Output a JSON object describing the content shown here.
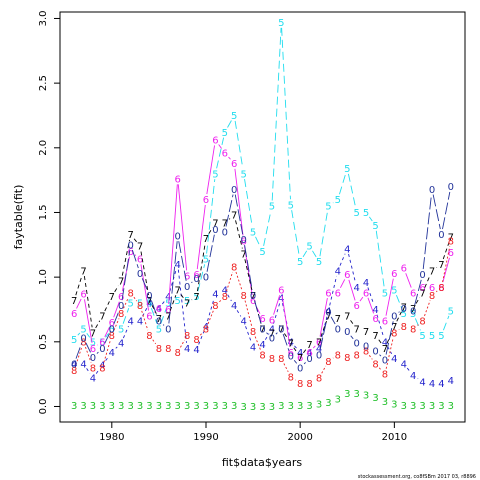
{
  "chart_data": {
    "type": "line",
    "title": "",
    "xlabel": "fit$data$years",
    "ylabel": "faytable(fit)",
    "xlim": [
      1974.5,
      2017.5
    ],
    "ylim": [
      -0.12,
      3.05
    ],
    "xticks": [
      1980,
      1990,
      2000,
      2010
    ],
    "yticks": [
      0.0,
      0.5,
      1.0,
      1.5,
      2.0,
      2.5,
      3.0
    ],
    "ytick_labels": [
      "0.0",
      "0.5",
      "1.0",
      "1.5",
      "2.0",
      "2.5",
      "3.0"
    ],
    "grid": false,
    "x": [
      1976,
      1977,
      1978,
      1979,
      1980,
      1981,
      1982,
      1983,
      1984,
      1985,
      1986,
      1987,
      1988,
      1989,
      1990,
      1991,
      1992,
      1993,
      1994,
      1995,
      1996,
      1997,
      1998,
      1999,
      2000,
      2001,
      2002,
      2003,
      2004,
      2005,
      2006,
      2007,
      2008,
      2009,
      2010,
      2011,
      2012,
      2013,
      2014,
      2015,
      2016
    ],
    "series": [
      {
        "name": "3",
        "color": "#22c02b",
        "dash": "solid",
        "values": [
          0.01,
          0.01,
          0.01,
          0.01,
          0.01,
          0.01,
          0.01,
          0.01,
          0.01,
          0.01,
          0.01,
          0.01,
          0.01,
          0.01,
          0.01,
          0.01,
          0.01,
          0.01,
          0.0,
          0.0,
          0.0,
          0.0,
          0.01,
          0.01,
          0.01,
          0.01,
          0.02,
          0.03,
          0.06,
          0.1,
          0.1,
          0.09,
          0.07,
          0.04,
          0.02,
          0.01,
          0.01,
          0.01,
          0.01,
          0.01,
          0.01
        ]
      },
      {
        "name": "4",
        "color": "#2222cc",
        "dash": "3,3",
        "values": [
          0.33,
          0.33,
          0.22,
          0.32,
          0.42,
          0.49,
          0.66,
          0.66,
          0.8,
          0.76,
          0.85,
          1.1,
          0.45,
          0.44,
          0.62,
          0.87,
          0.9,
          0.78,
          0.66,
          0.46,
          0.48,
          0.6,
          0.84,
          0.5,
          0.42,
          0.42,
          0.45,
          0.74,
          1.05,
          1.22,
          0.92,
          0.96,
          0.75,
          0.5,
          0.37,
          0.33,
          0.24,
          0.19,
          0.18,
          0.18,
          0.2
        ]
      },
      {
        "name": "5",
        "color": "#22ddee",
        "dash": "8,4",
        "values": [
          0.52,
          0.6,
          0.5,
          0.5,
          0.6,
          0.6,
          0.8,
          0.8,
          0.8,
          0.6,
          0.8,
          0.82,
          0.82,
          0.85,
          1.14,
          1.8,
          2.12,
          2.25,
          1.8,
          1.35,
          1.2,
          1.55,
          2.97,
          1.56,
          1.12,
          1.24,
          1.12,
          1.55,
          1.6,
          1.84,
          1.5,
          1.5,
          1.4,
          0.88,
          0.9,
          0.72,
          0.72,
          0.55,
          0.55,
          0.55,
          0.74
        ]
      },
      {
        "name": "6",
        "color": "#ee22ee",
        "dash": "solid",
        "values": [
          0.72,
          0.87,
          0.45,
          0.5,
          0.65,
          0.85,
          1.2,
          1.14,
          0.7,
          0.76,
          0.75,
          1.76,
          1.01,
          1.02,
          1.6,
          2.06,
          1.96,
          1.88,
          1.28,
          0.82,
          0.68,
          0.67,
          0.9,
          0.42,
          0.38,
          0.42,
          0.5,
          0.88,
          0.88,
          1.02,
          0.78,
          0.88,
          0.68,
          0.66,
          1.03,
          1.07,
          0.88,
          0.92,
          0.92,
          0.92,
          1.19
        ]
      },
      {
        "name": "7",
        "color": "#000000",
        "dash": "4,3",
        "values": [
          0.82,
          1.05,
          0.57,
          0.7,
          0.85,
          0.97,
          1.33,
          1.24,
          0.82,
          0.68,
          0.7,
          0.9,
          0.8,
          0.85,
          1.3,
          1.42,
          1.42,
          1.48,
          1.18,
          0.86,
          0.6,
          0.57,
          0.6,
          0.49,
          0.38,
          0.48,
          0.5,
          0.7,
          0.68,
          0.7,
          0.6,
          0.58,
          0.55,
          0.45,
          0.62,
          0.77,
          0.76,
          0.88,
          1.05,
          1.1,
          1.31
        ]
      },
      {
        "name": "8",
        "color": "#ee2222",
        "dash": "2,2",
        "values": [
          0.28,
          0.5,
          0.3,
          0.3,
          0.55,
          0.72,
          0.88,
          0.78,
          0.55,
          0.45,
          0.45,
          0.42,
          0.55,
          0.52,
          0.6,
          0.78,
          0.85,
          1.08,
          0.86,
          0.58,
          0.4,
          0.37,
          0.37,
          0.23,
          0.18,
          0.18,
          0.22,
          0.35,
          0.4,
          0.38,
          0.4,
          0.43,
          0.33,
          0.25,
          0.57,
          0.62,
          0.6,
          0.66,
          0.86,
          0.92,
          1.28
        ]
      },
      {
        "name": "0",
        "color": "#223399",
        "dash": "12,3",
        "values": [
          0.33,
          0.53,
          0.38,
          0.45,
          0.6,
          0.78,
          1.25,
          1.03,
          0.86,
          0.66,
          0.6,
          1.32,
          0.93,
          0.99,
          1.0,
          1.37,
          1.35,
          1.68,
          1.29,
          0.86,
          0.6,
          0.53,
          0.6,
          0.39,
          0.3,
          0.37,
          0.4,
          0.73,
          0.6,
          0.58,
          0.49,
          0.47,
          0.43,
          0.36,
          0.7,
          0.76,
          0.74,
          1.02,
          1.68,
          1.33,
          1.7
        ]
      }
    ]
  },
  "footer": {
    "text": "stockassessment.org, co8fSBm 2017 03, r8896"
  }
}
